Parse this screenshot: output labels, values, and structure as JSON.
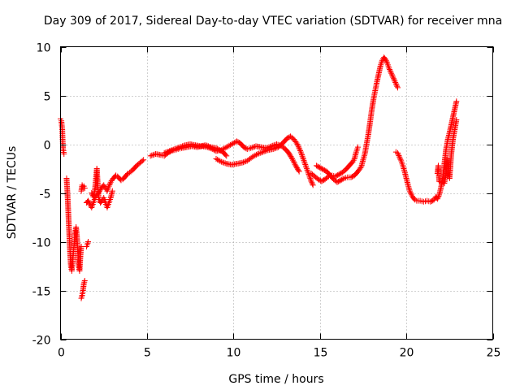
{
  "chart_data": {
    "type": "scatter",
    "title": "Day 309 of 2017, Sidereal Day-to-day VTEC variation (SDTVAR) for receiver mna",
    "xlabel": "GPS time / hours",
    "ylabel": "SDTVAR / TECUs",
    "xlim": [
      0,
      25
    ],
    "ylim": [
      -20,
      10
    ],
    "x_ticks": [
      0,
      5,
      10,
      15,
      20,
      25
    ],
    "y_ticks": [
      -20,
      -15,
      -10,
      -5,
      0,
      5,
      10
    ],
    "grid": true,
    "marker": "+",
    "colors": {
      "series": "#ff0000",
      "grid": "#a0a0a0",
      "axes": "#000000"
    },
    "series": [
      {
        "name": "SDTVAR",
        "segments": [
          [
            [
              0.0,
              2.6
            ],
            [
              0.05,
              2.4
            ],
            [
              0.1,
              1.5
            ],
            [
              0.12,
              0.5
            ],
            [
              0.15,
              -0.5
            ],
            [
              0.2,
              -1.0
            ]
          ],
          [
            [
              0.35,
              -3.5
            ],
            [
              0.4,
              -5.0
            ],
            [
              0.45,
              -7.0
            ],
            [
              0.5,
              -9.0
            ],
            [
              0.55,
              -11.0
            ],
            [
              0.6,
              -12.5
            ],
            [
              0.65,
              -13.0
            ],
            [
              0.7,
              -12.0
            ],
            [
              0.75,
              -11.0
            ],
            [
              0.8,
              -10.0
            ],
            [
              0.85,
              -9.0
            ],
            [
              0.9,
              -8.5
            ],
            [
              0.95,
              -9.5
            ],
            [
              1.0,
              -11.0
            ],
            [
              1.05,
              -12.5
            ],
            [
              1.1,
              -13.0
            ],
            [
              1.15,
              -11.5
            ],
            [
              1.2,
              -10.5
            ]
          ],
          [
            [
              1.2,
              -4.8
            ],
            [
              1.25,
              -4.2
            ],
            [
              1.3,
              -4.5
            ],
            [
              1.35,
              -4.3
            ],
            [
              1.4,
              -4.5
            ]
          ],
          [
            [
              1.2,
              -15.8
            ],
            [
              1.25,
              -15.5
            ],
            [
              1.3,
              -15.0
            ],
            [
              1.35,
              -14.3
            ],
            [
              1.4,
              -14.0
            ]
          ],
          [
            [
              1.5,
              -10.5
            ],
            [
              1.55,
              -10.3
            ],
            [
              1.6,
              -10.0
            ]
          ],
          [
            [
              1.5,
              -6.0
            ],
            [
              1.6,
              -5.8
            ],
            [
              1.7,
              -6.2
            ],
            [
              1.8,
              -6.5
            ],
            [
              1.9,
              -6.0
            ],
            [
              2.0,
              -5.5
            ],
            [
              2.1,
              -5.2
            ],
            [
              2.2,
              -5.0
            ],
            [
              2.3,
              -4.7
            ],
            [
              2.4,
              -4.4
            ],
            [
              2.5,
              -4.2
            ],
            [
              2.6,
              -4.5
            ],
            [
              2.7,
              -4.8
            ],
            [
              2.8,
              -4.3
            ],
            [
              2.9,
              -3.9
            ],
            [
              3.0,
              -3.6
            ],
            [
              3.1,
              -3.4
            ],
            [
              3.2,
              -3.2
            ],
            [
              3.3,
              -3.3
            ],
            [
              3.4,
              -3.5
            ],
            [
              3.5,
              -3.7
            ],
            [
              3.6,
              -3.6
            ],
            [
              3.7,
              -3.4
            ],
            [
              3.8,
              -3.2
            ],
            [
              3.9,
              -3.0
            ],
            [
              4.0,
              -2.9
            ],
            [
              4.2,
              -2.6
            ],
            [
              4.4,
              -2.2
            ],
            [
              4.6,
              -1.9
            ],
            [
              4.8,
              -1.6
            ]
          ],
          [
            [
              1.8,
              -5.0
            ],
            [
              1.9,
              -5.4
            ],
            [
              2.0,
              -4.5
            ],
            [
              2.05,
              -3.5
            ],
            [
              2.1,
              -2.5
            ],
            [
              2.15,
              -4.0
            ],
            [
              2.2,
              -5.5
            ],
            [
              2.3,
              -6.0
            ],
            [
              2.4,
              -5.8
            ],
            [
              2.5,
              -5.5
            ],
            [
              2.6,
              -6.0
            ],
            [
              2.7,
              -6.5
            ],
            [
              2.8,
              -6.0
            ],
            [
              2.9,
              -5.5
            ],
            [
              3.0,
              -4.8
            ]
          ],
          [
            [
              5.2,
              -1.2
            ],
            [
              5.5,
              -1.0
            ],
            [
              5.8,
              -1.1
            ],
            [
              6.0,
              -1.2
            ],
            [
              6.2,
              -0.9
            ],
            [
              6.4,
              -0.7
            ],
            [
              6.6,
              -0.6
            ],
            [
              6.8,
              -0.5
            ],
            [
              7.0,
              -0.4
            ],
            [
              7.3,
              -0.3
            ],
            [
              7.6,
              -0.2
            ],
            [
              7.9,
              -0.3
            ],
            [
              8.2,
              -0.2
            ],
            [
              8.5,
              -0.3
            ],
            [
              8.8,
              -0.5
            ],
            [
              9.0,
              -0.7
            ],
            [
              9.3,
              -0.6
            ],
            [
              9.6,
              -0.3
            ],
            [
              9.9,
              0.0
            ],
            [
              10.2,
              0.3
            ],
            [
              10.4,
              0.1
            ],
            [
              10.6,
              -0.3
            ],
            [
              10.8,
              -0.5
            ],
            [
              11.0,
              -0.4
            ],
            [
              11.3,
              -0.2
            ],
            [
              11.6,
              -0.3
            ],
            [
              11.9,
              -0.4
            ],
            [
              12.2,
              -0.2
            ],
            [
              12.5,
              0.0
            ],
            [
              12.8,
              -0.2
            ],
            [
              13.0,
              -0.5
            ],
            [
              13.2,
              -0.9
            ],
            [
              13.4,
              -1.5
            ],
            [
              13.6,
              -2.2
            ],
            [
              13.8,
              -2.8
            ]
          ],
          [
            [
              6.0,
              -0.9
            ],
            [
              6.3,
              -0.7
            ],
            [
              6.6,
              -0.5
            ],
            [
              6.9,
              -0.3
            ],
            [
              7.2,
              -0.1
            ],
            [
              7.5,
              0.0
            ],
            [
              7.8,
              -0.1
            ],
            [
              8.1,
              -0.2
            ],
            [
              8.4,
              -0.1
            ],
            [
              8.7,
              -0.3
            ],
            [
              9.0,
              -0.4
            ],
            [
              9.2,
              -0.6
            ],
            [
              9.4,
              -0.8
            ],
            [
              9.6,
              -1.2
            ]
          ],
          [
            [
              9.0,
              -1.5
            ],
            [
              9.3,
              -1.8
            ],
            [
              9.6,
              -2.0
            ],
            [
              9.9,
              -2.1
            ],
            [
              10.2,
              -2.0
            ],
            [
              10.5,
              -1.9
            ],
            [
              10.8,
              -1.7
            ],
            [
              11.1,
              -1.3
            ],
            [
              11.4,
              -1.0
            ],
            [
              11.7,
              -0.8
            ],
            [
              12.0,
              -0.6
            ],
            [
              12.3,
              -0.5
            ],
            [
              12.6,
              -0.3
            ],
            [
              12.9,
              0.2
            ],
            [
              13.1,
              0.6
            ],
            [
              13.3,
              0.8
            ],
            [
              13.5,
              0.5
            ],
            [
              13.7,
              0.0
            ],
            [
              13.9,
              -0.8
            ],
            [
              14.1,
              -1.8
            ],
            [
              14.3,
              -2.8
            ],
            [
              14.5,
              -3.8
            ],
            [
              14.6,
              -4.2
            ]
          ],
          [
            [
              14.5,
              -3.0
            ],
            [
              14.7,
              -3.3
            ],
            [
              14.9,
              -3.6
            ],
            [
              15.1,
              -3.8
            ],
            [
              15.3,
              -3.6
            ],
            [
              15.5,
              -3.3
            ],
            [
              15.7,
              -3.2
            ],
            [
              15.9,
              -3.3
            ],
            [
              16.1,
              -3.1
            ],
            [
              16.3,
              -2.9
            ],
            [
              16.5,
              -2.6
            ],
            [
              16.7,
              -2.2
            ],
            [
              16.9,
              -1.8
            ],
            [
              17.0,
              -1.5
            ],
            [
              17.1,
              -0.8
            ],
            [
              17.2,
              -0.3
            ]
          ],
          [
            [
              14.8,
              -2.2
            ],
            [
              15.0,
              -2.4
            ],
            [
              15.2,
              -2.6
            ],
            [
              15.4,
              -2.8
            ],
            [
              15.6,
              -3.2
            ],
            [
              15.8,
              -3.6
            ],
            [
              16.0,
              -3.9
            ],
            [
              16.2,
              -3.7
            ],
            [
              16.4,
              -3.5
            ],
            [
              16.6,
              -3.4
            ],
            [
              16.8,
              -3.4
            ],
            [
              17.0,
              -3.2
            ],
            [
              17.2,
              -2.8
            ],
            [
              17.4,
              -2.3
            ],
            [
              17.5,
              -1.6
            ],
            [
              17.6,
              -1.0
            ],
            [
              17.7,
              0.0
            ],
            [
              17.8,
              1.0
            ],
            [
              17.9,
              2.2
            ],
            [
              18.0,
              3.5
            ],
            [
              18.1,
              4.6
            ],
            [
              18.2,
              5.5
            ],
            [
              18.3,
              6.4
            ],
            [
              18.4,
              7.2
            ],
            [
              18.5,
              8.0
            ],
            [
              18.6,
              8.6
            ],
            [
              18.7,
              8.9
            ],
            [
              18.8,
              8.7
            ],
            [
              18.9,
              8.3
            ],
            [
              19.0,
              7.8
            ],
            [
              19.1,
              7.4
            ],
            [
              19.2,
              7.0
            ],
            [
              19.3,
              6.6
            ],
            [
              19.4,
              6.2
            ],
            [
              19.5,
              5.8
            ]
          ],
          [
            [
              19.4,
              -0.8
            ],
            [
              19.5,
              -0.9
            ],
            [
              19.6,
              -1.3
            ],
            [
              19.7,
              -1.7
            ],
            [
              19.8,
              -2.2
            ],
            [
              19.9,
              -2.8
            ],
            [
              20.0,
              -3.5
            ],
            [
              20.1,
              -4.2
            ],
            [
              20.2,
              -4.8
            ],
            [
              20.3,
              -5.2
            ],
            [
              20.4,
              -5.5
            ],
            [
              20.5,
              -5.7
            ],
            [
              20.6,
              -5.8
            ],
            [
              20.8,
              -5.8
            ],
            [
              21.0,
              -5.9
            ],
            [
              21.2,
              -5.8
            ],
            [
              21.4,
              -5.9
            ],
            [
              21.6,
              -5.7
            ],
            [
              21.7,
              -5.4
            ],
            [
              21.8,
              -5.6
            ],
            [
              21.9,
              -5.2
            ],
            [
              22.0,
              -4.5
            ],
            [
              22.1,
              -3.5
            ],
            [
              22.2,
              -2.0
            ],
            [
              22.3,
              -0.5
            ],
            [
              22.4,
              0.5
            ],
            [
              22.5,
              1.2
            ],
            [
              22.6,
              2.0
            ],
            [
              22.7,
              2.8
            ],
            [
              22.8,
              3.6
            ],
            [
              22.9,
              4.4
            ]
          ],
          [
            [
              21.8,
              -3.0
            ],
            [
              21.85,
              -2.2
            ],
            [
              21.9,
              -3.8
            ],
            [
              22.2,
              -4.0
            ],
            [
              22.3,
              -3.0
            ],
            [
              22.35,
              -1.5
            ],
            [
              22.4,
              -2.5
            ],
            [
              22.5,
              -3.5
            ],
            [
              22.6,
              -1.0
            ],
            [
              22.7,
              0.5
            ],
            [
              22.8,
              1.5
            ],
            [
              22.9,
              2.5
            ]
          ]
        ]
      }
    ]
  }
}
